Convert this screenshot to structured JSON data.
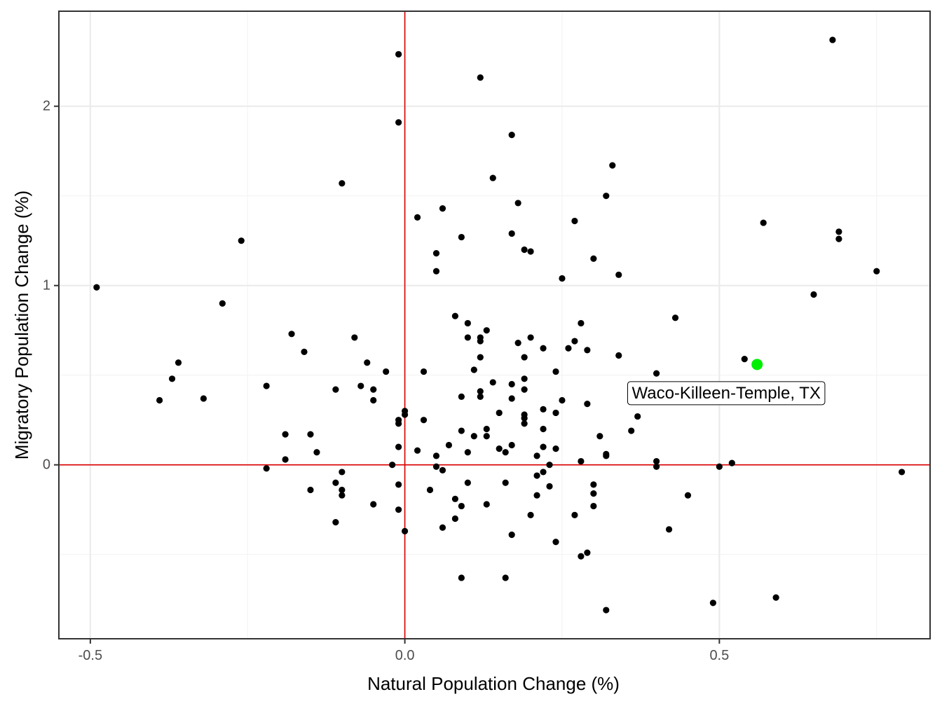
{
  "chart_data": {
    "type": "scatter",
    "xlabel": "Natural Population Change (%)",
    "ylabel": "Migratory Population Change (%)",
    "xlim": [
      -0.55,
      0.835
    ],
    "ylim": [
      -0.97,
      2.53
    ],
    "x_ticks": [
      -0.5,
      0.0,
      0.5
    ],
    "x_tick_labels": [
      "-0.5",
      "0.0",
      "0.5"
    ],
    "y_ticks": [
      0,
      1,
      2
    ],
    "y_tick_labels": [
      "0",
      "1",
      "2"
    ],
    "x_minor": [
      -0.25,
      0.25,
      0.75
    ],
    "y_minor": [
      -0.5,
      0.5,
      1.5
    ],
    "grid": true,
    "reference_lines": {
      "x": 0,
      "y": 0,
      "color": "#dd0000"
    },
    "point_color": "#000000",
    "highlight": {
      "label": "Waco-Killeen-Temple, TX",
      "x": 0.56,
      "y": 0.56,
      "color": "#00ee00"
    },
    "points": [
      [
        -0.49,
        0.99
      ],
      [
        -0.39,
        0.36
      ],
      [
        -0.37,
        0.48
      ],
      [
        -0.36,
        0.57
      ],
      [
        -0.32,
        0.37
      ],
      [
        -0.29,
        0.9
      ],
      [
        -0.26,
        1.25
      ],
      [
        -0.22,
        0.44
      ],
      [
        -0.22,
        -0.02
      ],
      [
        -0.19,
        0.17
      ],
      [
        -0.19,
        0.03
      ],
      [
        -0.18,
        0.73
      ],
      [
        -0.16,
        0.63
      ],
      [
        -0.15,
        0.17
      ],
      [
        -0.15,
        -0.14
      ],
      [
        -0.14,
        0.07
      ],
      [
        -0.1,
        1.57
      ],
      [
        -0.11,
        0.42
      ],
      [
        -0.11,
        -0.1
      ],
      [
        -0.1,
        -0.04
      ],
      [
        -0.1,
        -0.14
      ],
      [
        -0.1,
        -0.17
      ],
      [
        -0.11,
        -0.32
      ],
      [
        -0.08,
        0.71
      ],
      [
        -0.07,
        0.44
      ],
      [
        -0.06,
        0.57
      ],
      [
        -0.05,
        0.42
      ],
      [
        -0.05,
        0.36
      ],
      [
        -0.05,
        -0.22
      ],
      [
        -0.03,
        0.52
      ],
      [
        -0.02,
        0.0
      ],
      [
        -0.01,
        2.29
      ],
      [
        -0.01,
        1.91
      ],
      [
        -0.01,
        0.25
      ],
      [
        -0.01,
        0.23
      ],
      [
        -0.01,
        0.1
      ],
      [
        -0.01,
        -0.11
      ],
      [
        -0.01,
        -0.25
      ],
      [
        0.0,
        0.3
      ],
      [
        0.0,
        0.28
      ],
      [
        0.0,
        -0.37
      ],
      [
        0.02,
        1.38
      ],
      [
        0.02,
        0.08
      ],
      [
        0.03,
        0.52
      ],
      [
        0.03,
        0.25
      ],
      [
        0.04,
        -0.14
      ],
      [
        0.05,
        1.18
      ],
      [
        0.05,
        1.08
      ],
      [
        0.05,
        0.05
      ],
      [
        0.05,
        -0.01
      ],
      [
        0.06,
        1.43
      ],
      [
        0.06,
        -0.03
      ],
      [
        0.06,
        -0.35
      ],
      [
        0.07,
        0.11
      ],
      [
        0.08,
        0.83
      ],
      [
        0.08,
        -0.19
      ],
      [
        0.08,
        -0.3
      ],
      [
        0.09,
        1.27
      ],
      [
        0.09,
        0.38
      ],
      [
        0.09,
        0.19
      ],
      [
        0.09,
        -0.23
      ],
      [
        0.09,
        -0.63
      ],
      [
        0.1,
        0.79
      ],
      [
        0.1,
        0.71
      ],
      [
        0.1,
        0.07
      ],
      [
        0.1,
        -0.1
      ],
      [
        0.11,
        0.53
      ],
      [
        0.11,
        0.16
      ],
      [
        0.12,
        2.16
      ],
      [
        0.12,
        0.71
      ],
      [
        0.12,
        0.69
      ],
      [
        0.12,
        0.6
      ],
      [
        0.12,
        0.41
      ],
      [
        0.12,
        0.38
      ],
      [
        0.13,
        0.75
      ],
      [
        0.13,
        0.2
      ],
      [
        0.13,
        0.16
      ],
      [
        0.13,
        -0.22
      ],
      [
        0.14,
        1.6
      ],
      [
        0.14,
        0.46
      ],
      [
        0.15,
        0.29
      ],
      [
        0.15,
        0.09
      ],
      [
        0.16,
        0.07
      ],
      [
        0.16,
        -0.1
      ],
      [
        0.16,
        -0.63
      ],
      [
        0.17,
        1.84
      ],
      [
        0.17,
        1.29
      ],
      [
        0.17,
        0.45
      ],
      [
        0.17,
        0.37
      ],
      [
        0.17,
        0.11
      ],
      [
        0.17,
        -0.39
      ],
      [
        0.18,
        1.46
      ],
      [
        0.18,
        0.68
      ],
      [
        0.19,
        1.2
      ],
      [
        0.19,
        0.6
      ],
      [
        0.19,
        0.48
      ],
      [
        0.19,
        0.42
      ],
      [
        0.19,
        0.28
      ],
      [
        0.19,
        0.26
      ],
      [
        0.19,
        0.23
      ],
      [
        0.2,
        1.19
      ],
      [
        0.2,
        0.71
      ],
      [
        0.2,
        -0.28
      ],
      [
        0.21,
        0.05
      ],
      [
        0.21,
        -0.06
      ],
      [
        0.21,
        -0.17
      ],
      [
        0.22,
        0.65
      ],
      [
        0.22,
        0.31
      ],
      [
        0.22,
        0.2
      ],
      [
        0.22,
        0.1
      ],
      [
        0.22,
        -0.04
      ],
      [
        0.23,
        0.0
      ],
      [
        0.23,
        -0.12
      ],
      [
        0.24,
        0.52
      ],
      [
        0.24,
        0.29
      ],
      [
        0.24,
        0.09
      ],
      [
        0.24,
        -0.43
      ],
      [
        0.25,
        1.04
      ],
      [
        0.25,
        0.36
      ],
      [
        0.26,
        0.65
      ],
      [
        0.27,
        1.36
      ],
      [
        0.27,
        0.69
      ],
      [
        0.27,
        -0.28
      ],
      [
        0.28,
        0.79
      ],
      [
        0.28,
        0.02
      ],
      [
        0.28,
        -0.51
      ],
      [
        0.29,
        0.64
      ],
      [
        0.29,
        0.34
      ],
      [
        0.29,
        -0.49
      ],
      [
        0.3,
        1.15
      ],
      [
        0.3,
        -0.11
      ],
      [
        0.3,
        -0.16
      ],
      [
        0.3,
        -0.23
      ],
      [
        0.31,
        0.16
      ],
      [
        0.32,
        1.5
      ],
      [
        0.32,
        0.06
      ],
      [
        0.32,
        0.05
      ],
      [
        0.32,
        -0.81
      ],
      [
        0.33,
        1.67
      ],
      [
        0.34,
        1.06
      ],
      [
        0.34,
        0.61
      ],
      [
        0.36,
        0.19
      ],
      [
        0.37,
        0.27
      ],
      [
        0.4,
        0.51
      ],
      [
        0.4,
        0.02
      ],
      [
        0.4,
        -0.01
      ],
      [
        0.42,
        -0.36
      ],
      [
        0.43,
        0.82
      ],
      [
        0.45,
        -0.17
      ],
      [
        0.49,
        -0.77
      ],
      [
        0.5,
        -0.01
      ],
      [
        0.52,
        0.01
      ],
      [
        0.54,
        0.59
      ],
      [
        0.57,
        1.35
      ],
      [
        0.59,
        -0.74
      ],
      [
        0.65,
        0.95
      ],
      [
        0.68,
        2.37
      ],
      [
        0.69,
        1.3
      ],
      [
        0.69,
        1.26
      ],
      [
        0.75,
        1.08
      ],
      [
        0.79,
        -0.04
      ]
    ]
  }
}
